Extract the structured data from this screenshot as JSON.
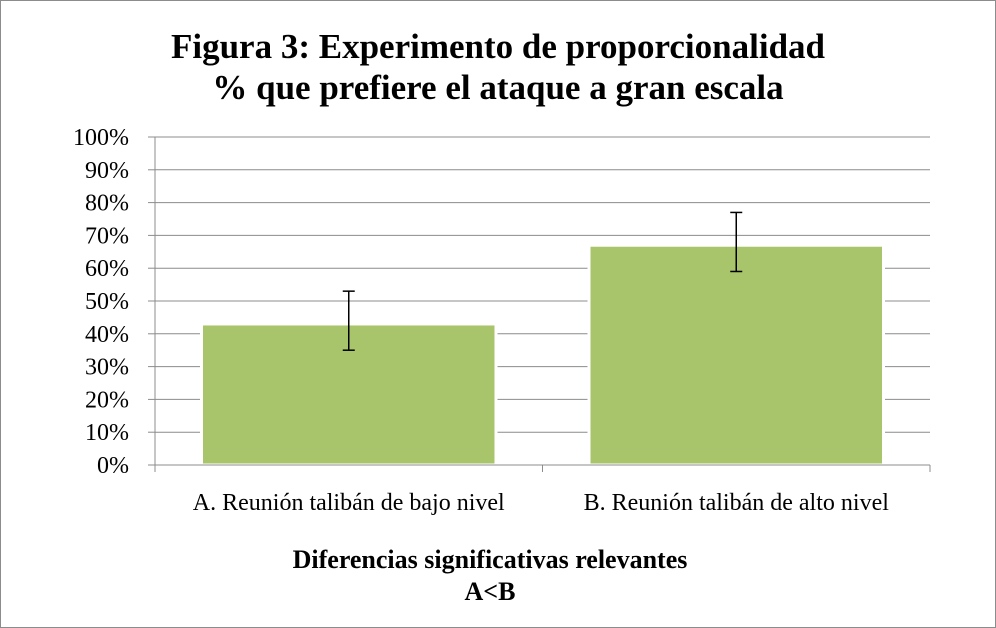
{
  "chart_data": {
    "type": "bar",
    "title_line1": "Figura 3: Experimento de proporcionalidad",
    "title_line2": "% que prefiere el ataque a gran escala",
    "categories": [
      "A. Reunión talibán de bajo nivel",
      "B. Reunión talibán de alto nivel"
    ],
    "values": [
      43,
      67
    ],
    "error_low": [
      35,
      59
    ],
    "error_high": [
      53,
      77
    ],
    "ylim": [
      0,
      100
    ],
    "yticks": [
      0,
      10,
      20,
      30,
      40,
      50,
      60,
      70,
      80,
      90,
      100
    ],
    "ytick_labels": [
      "0%",
      "10%",
      "20%",
      "30%",
      "40%",
      "50%",
      "60%",
      "70%",
      "80%",
      "90%",
      "100%"
    ],
    "bar_color": "#a9c56b",
    "grid": true,
    "legend": "none",
    "footnote_line1": "Diferencias significativas relevantes",
    "footnote_line2": "A<B"
  }
}
